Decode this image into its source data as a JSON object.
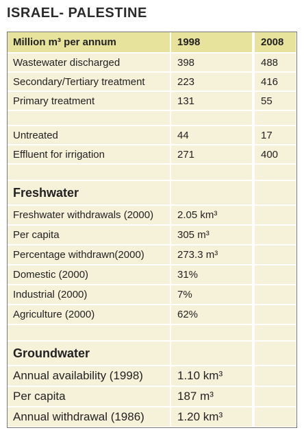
{
  "title": "ISRAEL- PALESTINE",
  "table": {
    "header": [
      "Million m³ per annum",
      "1998",
      "2008"
    ],
    "sections": [
      {
        "rows": [
          [
            "Wastewater discharged",
            "398",
            "488"
          ],
          [
            "Secondary/Tertiary treatment",
            "223",
            "416"
          ],
          [
            "Primary treatment",
            "131",
            "55"
          ],
          [
            "Untreated",
            "44",
            "17"
          ],
          [
            "Effluent for irrigation",
            "271",
            "400"
          ]
        ]
      },
      {
        "heading": "Freshwater",
        "rows": [
          [
            "Freshwater withdrawals (2000)",
            "2.05 km³"
          ],
          [
            "Per capita",
            "305 m³"
          ],
          [
            "Percentage withdrawn(2000)",
            "273.3 m³"
          ],
          [
            "Domestic (2000)",
            "31%"
          ],
          [
            "Industrial (2000)",
            "7%"
          ],
          [
            "Agriculture (2000)",
            "62%"
          ]
        ]
      },
      {
        "heading": "Groundwater",
        "rows": [
          [
            "Annual availability (1998)",
            "1.10 km³"
          ],
          [
            "Per capita",
            "187 m³"
          ],
          [
            "Annual withdrawal (1986)",
            "1.20 km³"
          ]
        ]
      }
    ]
  }
}
